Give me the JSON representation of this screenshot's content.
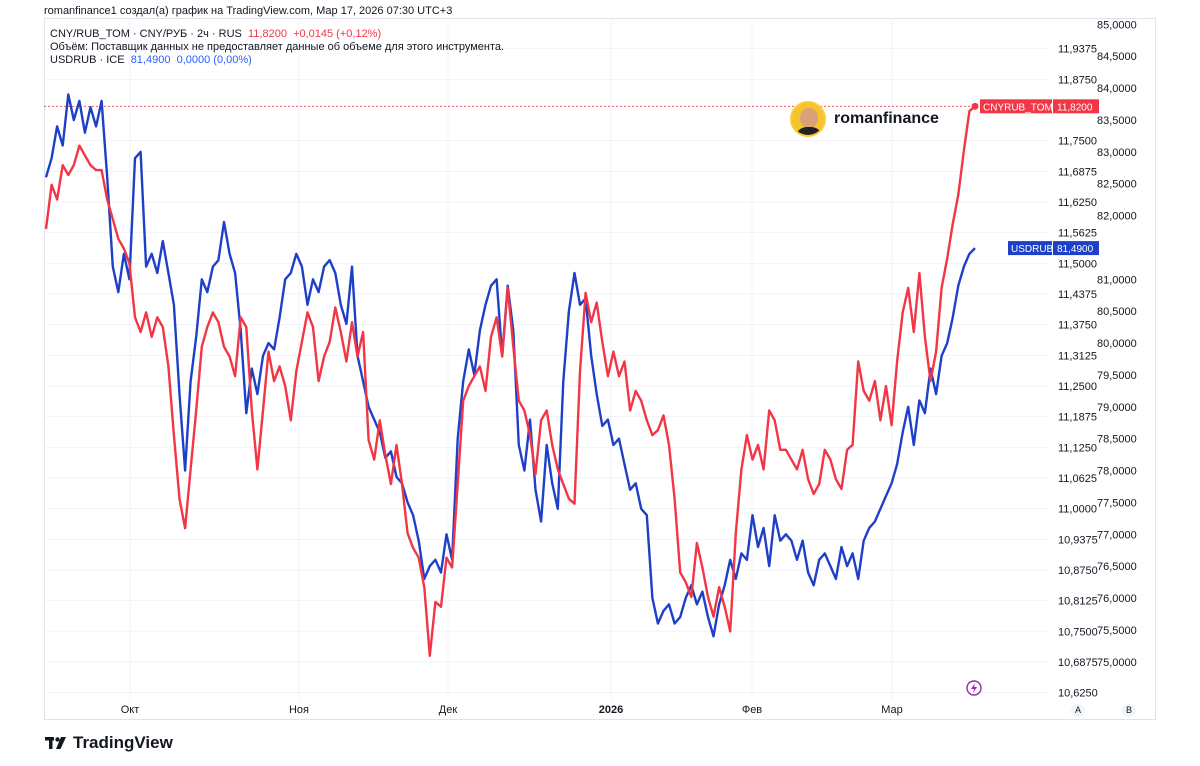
{
  "header": {
    "credit": "romanfinance1 создал(а) график на TradingView.com, Мар 17, 2026 07:30 UTC+3"
  },
  "legend": {
    "line1_symbol": "CNY/RUB_TOM · CNY/РУБ · 2ч · RUS",
    "line1_price": "11,8200",
    "line1_change": "+0,0145 (+0,12%)",
    "line2_text": "Объём: Поставщик данных не предоставляет данные об объеме для этого инструмента.",
    "line3_symbol": "USDRUB · ICE",
    "line3_price": "81,4900",
    "line3_change": "0,0000 (0,00%)"
  },
  "author": {
    "name": "romanfinance"
  },
  "brand": {
    "name": "TradingView"
  },
  "axis_buttons": {
    "auto": "A",
    "log": "B"
  },
  "colors": {
    "cny": "#f23645",
    "usd": "#1e40c8",
    "grid": "#f0f3fa",
    "text": "#131722"
  },
  "chart_data": {
    "type": "line",
    "x_axis": {
      "tick_labels": [
        "Окт",
        "Ноя",
        "Дек",
        "2026",
        "Фев",
        "Мар"
      ],
      "bold_labels": [
        "2026"
      ]
    },
    "y_axis_inner": {
      "label": "CNY/RUB_TOM",
      "ticks": [
        "11,9375",
        "11,8750",
        "11,7500",
        "11,6875",
        "11,6250",
        "11,5625",
        "11,5000",
        "11,4375",
        "11,3750",
        "11,3125",
        "11,2500",
        "11,1875",
        "11,1250",
        "11,0625",
        "11,0000",
        "10,9375",
        "10,8750",
        "10,8125",
        "10,7500",
        "10,6875",
        "10,6250"
      ],
      "ylim": [
        10.61,
        12.0
      ]
    },
    "y_axis_outer": {
      "label": "USDRUB",
      "ticks": [
        "85,0000",
        "84,5000",
        "84,0000",
        "83,5000",
        "83,0000",
        "82,5000",
        "82,0000",
        "81,0000",
        "80,5000",
        "80,0000",
        "79,5000",
        "79,0000",
        "78,5000",
        "78,0000",
        "77,5000",
        "77,0000",
        "76,5000",
        "76,0000",
        "75,5000",
        "75,0000"
      ],
      "ylim": [
        74.4,
        85.1
      ]
    },
    "price_labels": [
      {
        "series": "CNYRUB_TOM",
        "text": "11,8200",
        "value": 11.82
      },
      {
        "series": "USDRUB",
        "text": "81,4900",
        "value": 81.49
      }
    ],
    "series": [
      {
        "name": "CNYRUB_TOM",
        "scale": "inner",
        "values": [
          11.57,
          11.66,
          11.63,
          11.7,
          11.68,
          11.7,
          11.74,
          11.72,
          11.7,
          11.69,
          11.69,
          11.63,
          11.59,
          11.55,
          11.53,
          11.5,
          11.39,
          11.36,
          11.4,
          11.35,
          11.39,
          11.37,
          11.29,
          11.15,
          11.02,
          10.96,
          11.08,
          11.2,
          11.33,
          11.37,
          11.4,
          11.38,
          11.33,
          11.31,
          11.27,
          11.39,
          11.37,
          11.2,
          11.08,
          11.2,
          11.32,
          11.26,
          11.29,
          11.25,
          11.18,
          11.28,
          11.34,
          11.4,
          11.37,
          11.26,
          11.31,
          11.34,
          11.41,
          11.36,
          11.3,
          11.38,
          11.31,
          11.36,
          11.14,
          11.1,
          11.18,
          11.11,
          11.05,
          11.13,
          11.05,
          10.95,
          10.92,
          10.9,
          10.84,
          10.7,
          10.81,
          10.8,
          10.9,
          10.88,
          11.05,
          11.22,
          11.25,
          11.27,
          11.29,
          11.24,
          11.35,
          11.39,
          11.31,
          11.45,
          11.33,
          11.22,
          11.2,
          11.15,
          11.07,
          11.18,
          11.2,
          11.13,
          11.08,
          11.05,
          11.02,
          11.01,
          11.28,
          11.44,
          11.38,
          11.42,
          11.34,
          11.27,
          11.32,
          11.27,
          11.3,
          11.2,
          11.24,
          11.22,
          11.18,
          11.15,
          11.16,
          11.19,
          11.13,
          11.02,
          10.87,
          10.85,
          10.82,
          10.93,
          10.88,
          10.82,
          10.78,
          10.84,
          10.8,
          10.75,
          10.95,
          11.08,
          11.15,
          11.1,
          11.13,
          11.08,
          11.2,
          11.18,
          11.12,
          11.12,
          11.1,
          11.08,
          11.12,
          11.06,
          11.03,
          11.05,
          11.12,
          11.1,
          11.06,
          11.04,
          11.12,
          11.13,
          11.3,
          11.24,
          11.22,
          11.26,
          11.18,
          11.25,
          11.17,
          11.3,
          11.4,
          11.45,
          11.36,
          11.48,
          11.35,
          11.26,
          11.32,
          11.45,
          11.51,
          11.58,
          11.64,
          11.73,
          11.81,
          11.82
        ]
      },
      {
        "name": "USDRUB",
        "scale": "outer",
        "values": [
          82.6,
          82.9,
          83.4,
          83.1,
          83.9,
          83.5,
          83.8,
          83.3,
          83.7,
          83.4,
          83.8,
          82.6,
          81.2,
          80.8,
          81.4,
          81.0,
          82.9,
          83.0,
          81.2,
          81.4,
          81.1,
          81.6,
          81.1,
          80.6,
          79.2,
          78.0,
          79.4,
          80.1,
          81.0,
          80.8,
          81.2,
          81.3,
          81.9,
          81.4,
          81.1,
          80.2,
          78.9,
          79.6,
          79.2,
          79.8,
          80.0,
          79.9,
          80.4,
          81.0,
          81.1,
          81.4,
          81.2,
          80.6,
          81.0,
          80.8,
          81.2,
          81.3,
          81.1,
          80.6,
          80.3,
          81.2,
          79.8,
          79.4,
          79.0,
          78.8,
          78.6,
          78.2,
          78.3,
          77.9,
          77.8,
          77.5,
          77.3,
          76.9,
          76.3,
          76.5,
          76.6,
          76.4,
          77.0,
          76.6,
          78.5,
          79.4,
          79.9,
          79.5,
          80.2,
          80.6,
          80.9,
          81.0,
          79.8,
          80.9,
          80.2,
          78.4,
          78.0,
          78.8,
          77.7,
          77.2,
          78.4,
          77.8,
          77.4,
          79.4,
          80.5,
          81.1,
          80.6,
          80.7,
          79.8,
          79.2,
          78.7,
          78.8,
          78.4,
          78.5,
          78.1,
          77.7,
          77.8,
          77.4,
          77.3,
          76.0,
          75.6,
          75.8,
          75.9,
          75.6,
          75.7,
          76.0,
          76.2,
          75.9,
          76.1,
          75.7,
          75.4,
          75.9,
          76.2,
          76.6,
          76.3,
          76.7,
          76.6,
          77.3,
          76.8,
          77.1,
          76.5,
          77.3,
          76.9,
          77.0,
          76.9,
          76.6,
          76.9,
          76.4,
          76.2,
          76.6,
          76.7,
          76.5,
          76.3,
          76.8,
          76.5,
          76.7,
          76.3,
          76.9,
          77.1,
          77.2,
          77.4,
          77.6,
          77.8,
          78.1,
          78.6,
          79.0,
          78.4,
          79.1,
          78.9,
          79.6,
          79.2,
          79.8,
          80.0,
          80.4,
          80.9,
          81.2,
          81.4,
          81.49
        ]
      }
    ],
    "xlabel": "",
    "ylabel": "",
    "grid": true,
    "legend_position": "top-left"
  }
}
